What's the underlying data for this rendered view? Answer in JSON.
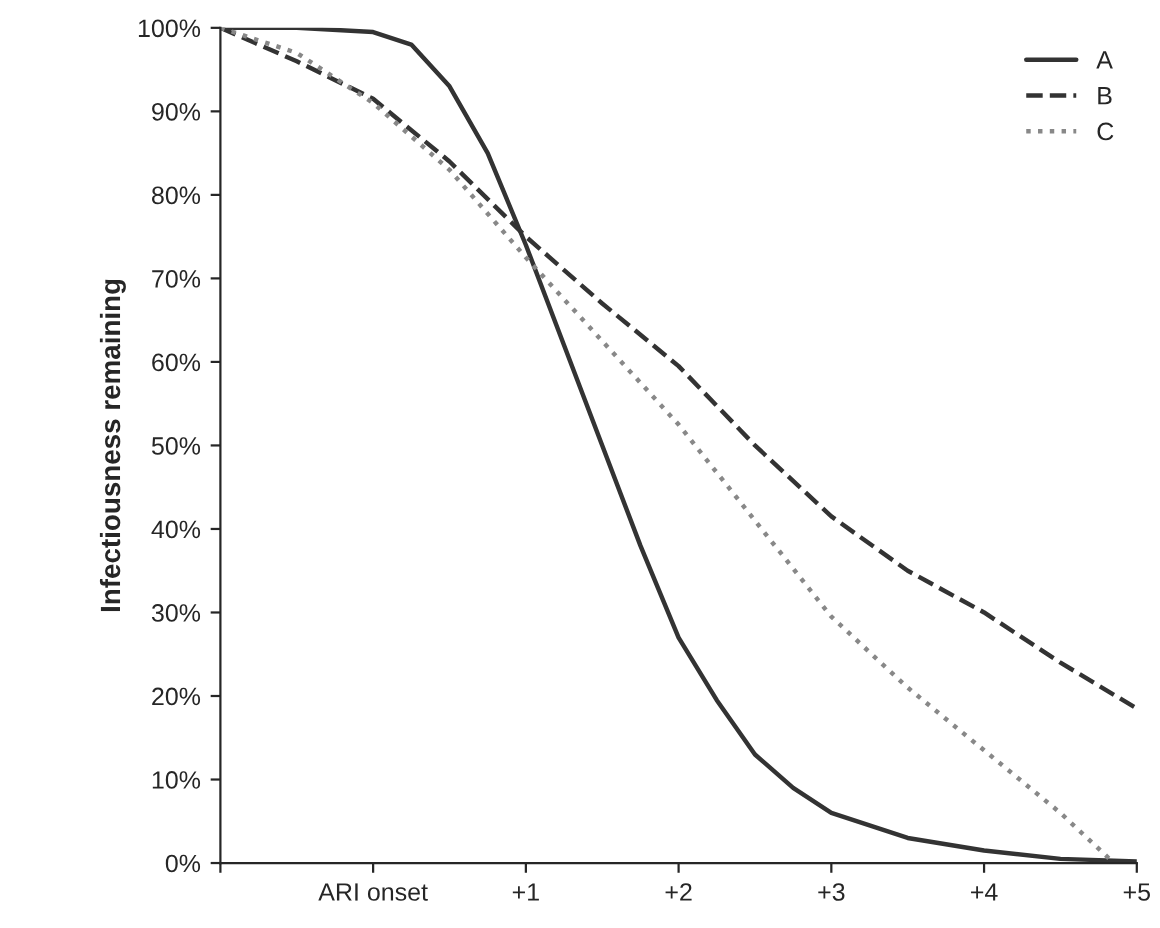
{
  "chart_data": {
    "type": "line",
    "ylabel": "Infectiousness remaining",
    "xlim": [
      -1,
      5
    ],
    "ylim": [
      0,
      100
    ],
    "xticks": [
      {
        "value": -1,
        "label": null
      },
      {
        "value": 0,
        "label": "ARI onset"
      },
      {
        "value": 1,
        "label": "+1"
      },
      {
        "value": 2,
        "label": "+2"
      },
      {
        "value": 3,
        "label": "+3"
      },
      {
        "value": 4,
        "label": "+4"
      },
      {
        "value": 5,
        "label": "+5"
      }
    ],
    "yticks": [
      {
        "value": 0,
        "label": "0%"
      },
      {
        "value": 10,
        "label": "10%"
      },
      {
        "value": 20,
        "label": "20%"
      },
      {
        "value": 30,
        "label": "30%"
      },
      {
        "value": 40,
        "label": "40%"
      },
      {
        "value": 50,
        "label": "50%"
      },
      {
        "value": 60,
        "label": "60%"
      },
      {
        "value": 70,
        "label": "70%"
      },
      {
        "value": 80,
        "label": "80%"
      },
      {
        "value": 90,
        "label": "90%"
      },
      {
        "value": 100,
        "label": "100%"
      }
    ],
    "legend": "top right",
    "grid": false,
    "series": [
      {
        "name": "A",
        "color": "#333333",
        "line_style": "solid",
        "x": [
          -1,
          -0.5,
          0,
          0.25,
          0.5,
          0.75,
          1,
          1.25,
          1.5,
          1.75,
          2,
          2.25,
          2.5,
          2.75,
          3,
          3.5,
          4,
          4.5,
          5
        ],
        "values": [
          100,
          100,
          99.5,
          98,
          93,
          85,
          74,
          62,
          50,
          38,
          27,
          19.5,
          13,
          9,
          6,
          3,
          1.5,
          0.5,
          0.2
        ]
      },
      {
        "name": "B",
        "color": "#333333",
        "line_style": "dashed",
        "x": [
          -1,
          -0.5,
          0,
          0.5,
          1,
          1.5,
          2,
          2.5,
          3,
          3.5,
          4,
          4.5,
          5
        ],
        "values": [
          100,
          96,
          91.5,
          84,
          75,
          67,
          59.5,
          50,
          41.5,
          35,
          30,
          24,
          18.5
        ]
      },
      {
        "name": "C",
        "color": "#888888",
        "line_style": "dotted",
        "x": [
          -1,
          -0.5,
          0,
          0.5,
          1,
          1.5,
          2,
          2.5,
          3,
          3.5,
          4,
          4.5,
          4.85
        ],
        "values": [
          100,
          97,
          91,
          83,
          72.5,
          62.5,
          52.5,
          41,
          29.5,
          21,
          13.5,
          6,
          0
        ]
      }
    ]
  }
}
